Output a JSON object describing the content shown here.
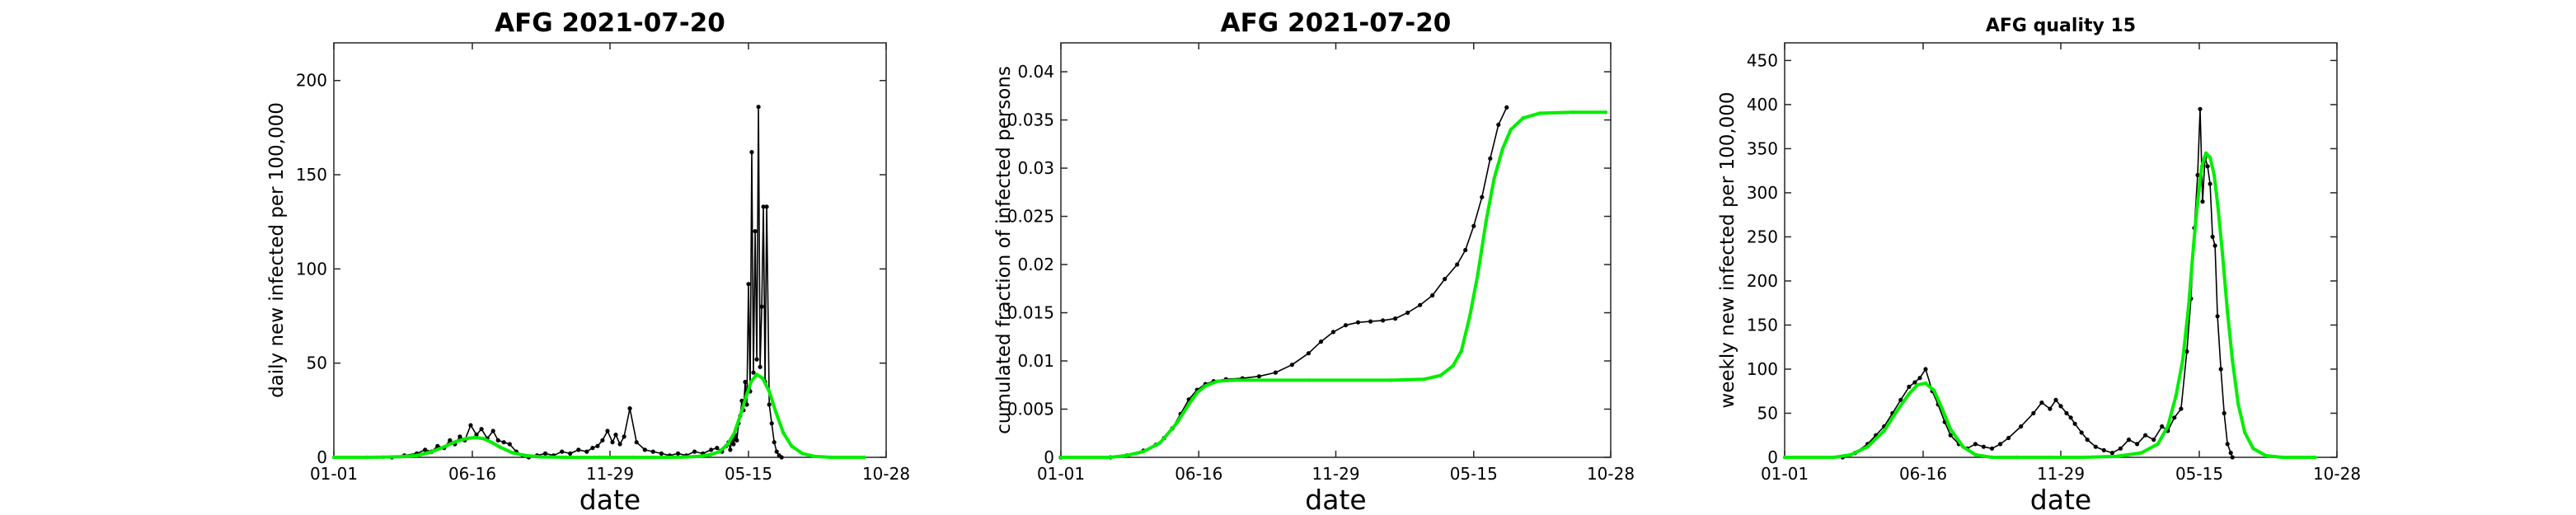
{
  "chart_data": [
    {
      "type": "line",
      "title": "AFG   2021-07-20",
      "xlabel": "date",
      "ylabel": "daily new infected per 100,000",
      "xticks": [
        "01-01",
        "06-16",
        "11-29",
        "05-15",
        "10-28"
      ],
      "xtick_positions": [
        0,
        167,
        333,
        500,
        666
      ],
      "xlim": [
        0,
        666
      ],
      "ylim": [
        0,
        220
      ],
      "yticks": [
        0,
        50,
        100,
        150,
        200
      ],
      "grid": false,
      "series": [
        {
          "role": "observed",
          "color": "#000000",
          "x": [
            70,
            85,
            100,
            110,
            118,
            125,
            133,
            140,
            146,
            152,
            158,
            165,
            172,
            178,
            185,
            192,
            198,
            205,
            212,
            220,
            228,
            235,
            245,
            255,
            265,
            275,
            285,
            295,
            305,
            312,
            318,
            324,
            330,
            336,
            340,
            345,
            350,
            357,
            365,
            375,
            385,
            395,
            405,
            415,
            425,
            435,
            445,
            455,
            462,
            468,
            473,
            476,
            478,
            480,
            482,
            484,
            486,
            488,
            490,
            492,
            494,
            496,
            498,
            500,
            502,
            504,
            506,
            508,
            510,
            512,
            514,
            516,
            518,
            520,
            522,
            525,
            528,
            531,
            534,
            537,
            540
          ],
          "y": [
            0,
            1,
            2,
            4,
            3,
            6,
            5,
            9,
            7,
            11,
            9,
            17,
            12,
            15,
            10,
            14,
            9,
            8,
            7,
            3,
            1,
            0,
            1,
            2,
            1,
            3,
            2,
            4,
            3,
            5,
            6,
            9,
            14,
            8,
            12,
            7,
            11,
            26,
            8,
            4,
            3,
            2,
            1,
            2,
            1,
            3,
            2,
            4,
            5,
            3,
            6,
            8,
            4,
            10,
            7,
            12,
            9,
            18,
            22,
            30,
            25,
            40,
            28,
            92,
            35,
            162,
            45,
            120,
            52,
            186,
            48,
            80,
            133,
            40,
            133,
            28,
            18,
            8,
            3,
            1,
            0
          ]
        },
        {
          "role": "fit",
          "color": "#00ee00",
          "x": [
            0,
            40,
            60,
            80,
            100,
            115,
            130,
            145,
            160,
            170,
            180,
            190,
            200,
            215,
            230,
            250,
            280,
            320,
            360,
            400,
            420,
            440,
            455,
            465,
            475,
            483,
            490,
            497,
            503,
            510,
            517,
            525,
            533,
            542,
            552,
            565,
            580,
            600,
            640
          ],
          "y": [
            0,
            0,
            0.1,
            0.3,
            1,
            2.5,
            5,
            8,
            10,
            10.5,
            10,
            8,
            5.5,
            2.5,
            1,
            0.2,
            0,
            0,
            0,
            0,
            0.1,
            0.5,
            1.5,
            3,
            7,
            13,
            22,
            32,
            40,
            44,
            42,
            35,
            24,
            13,
            6,
            2,
            0.5,
            0,
            0
          ]
        }
      ]
    },
    {
      "type": "line",
      "title": "AFG   2021-07-20",
      "xlabel": "date",
      "ylabel": "cumulated fraction of infected persons",
      "xticks": [
        "01-01",
        "06-16",
        "11-29",
        "05-15",
        "10-28"
      ],
      "xtick_positions": [
        0,
        167,
        333,
        500,
        666
      ],
      "xlim": [
        0,
        666
      ],
      "ylim": [
        0,
        0.043
      ],
      "yticks": [
        0,
        0.005,
        0.01,
        0.015,
        0.02,
        0.025,
        0.03,
        0.035,
        0.04
      ],
      "ytick_labels": [
        "0",
        "0.005",
        "0.01",
        "0.015",
        "0.02",
        "0.025",
        "0.03",
        "0.035",
        "0.04"
      ],
      "grid": false,
      "series": [
        {
          "role": "observed",
          "color": "#000000",
          "x": [
            0,
            60,
            80,
            100,
            115,
            125,
            135,
            145,
            155,
            165,
            175,
            185,
            200,
            220,
            240,
            260,
            280,
            300,
            315,
            330,
            345,
            360,
            375,
            390,
            405,
            420,
            435,
            450,
            465,
            480,
            490,
            500,
            510,
            520,
            530,
            540
          ],
          "y": [
            0,
            0,
            0.0002,
            0.0007,
            0.0013,
            0.002,
            0.003,
            0.0045,
            0.006,
            0.007,
            0.0076,
            0.0079,
            0.0081,
            0.0082,
            0.0084,
            0.0088,
            0.0096,
            0.0108,
            0.012,
            0.013,
            0.0137,
            0.014,
            0.0141,
            0.0142,
            0.0144,
            0.015,
            0.0158,
            0.0168,
            0.0185,
            0.02,
            0.0215,
            0.024,
            0.027,
            0.031,
            0.0345,
            0.0363
          ]
        },
        {
          "role": "fit",
          "color": "#00ee00",
          "x": [
            0,
            60,
            80,
            100,
            120,
            140,
            155,
            165,
            175,
            190,
            210,
            300,
            400,
            440,
            460,
            475,
            485,
            495,
            505,
            515,
            525,
            535,
            545,
            560,
            580,
            620,
            660
          ],
          "y": [
            0,
            0,
            0.0002,
            0.0006,
            0.0015,
            0.0035,
            0.0055,
            0.0067,
            0.0074,
            0.0079,
            0.008,
            0.008,
            0.008,
            0.0081,
            0.0085,
            0.0095,
            0.011,
            0.0145,
            0.019,
            0.0245,
            0.029,
            0.032,
            0.034,
            0.0352,
            0.0357,
            0.0358,
            0.0358
          ]
        }
      ]
    },
    {
      "type": "line",
      "title": "AFG  quality 15",
      "xlabel": "date",
      "ylabel": "weekly new infected per 100,000",
      "xticks": [
        "01-01",
        "06-16",
        "11-29",
        "05-15",
        "10-28"
      ],
      "xtick_positions": [
        0,
        167,
        333,
        500,
        666
      ],
      "xlim": [
        0,
        666
      ],
      "ylim": [
        0,
        470
      ],
      "yticks": [
        0,
        50,
        100,
        150,
        200,
        250,
        300,
        350,
        400,
        450
      ],
      "grid": false,
      "series": [
        {
          "role": "observed",
          "color": "#000000",
          "x": [
            70,
            85,
            100,
            110,
            120,
            130,
            140,
            150,
            157,
            163,
            170,
            178,
            185,
            193,
            200,
            210,
            220,
            230,
            240,
            250,
            260,
            270,
            285,
            300,
            310,
            320,
            327,
            333,
            340,
            345,
            350,
            358,
            365,
            375,
            385,
            395,
            405,
            415,
            425,
            435,
            445,
            455,
            462,
            470,
            478,
            485,
            490,
            494,
            498,
            501,
            504,
            507,
            510,
            513,
            516,
            519,
            522,
            526,
            530,
            534,
            538,
            540
          ],
          "y": [
            0,
            5,
            15,
            25,
            35,
            50,
            65,
            80,
            85,
            90,
            100,
            75,
            60,
            40,
            25,
            15,
            10,
            15,
            12,
            10,
            15,
            22,
            35,
            50,
            62,
            55,
            65,
            58,
            50,
            45,
            38,
            28,
            20,
            12,
            8,
            5,
            10,
            20,
            15,
            25,
            20,
            35,
            30,
            45,
            55,
            120,
            180,
            260,
            320,
            395,
            290,
            340,
            330,
            310,
            250,
            240,
            160,
            100,
            50,
            15,
            5,
            0
          ]
        },
        {
          "role": "fit",
          "color": "#00ee00",
          "x": [
            0,
            60,
            80,
            100,
            120,
            135,
            150,
            160,
            170,
            180,
            190,
            200,
            215,
            230,
            250,
            280,
            320,
            360,
            400,
            430,
            450,
            462,
            472,
            480,
            487,
            493,
            498,
            503,
            508,
            513,
            518,
            523,
            528,
            534,
            540,
            547,
            555,
            565,
            580,
            600,
            640
          ],
          "y": [
            0,
            0,
            3,
            12,
            30,
            52,
            72,
            82,
            84,
            76,
            55,
            32,
            12,
            3,
            0,
            0,
            0,
            0,
            1,
            5,
            15,
            35,
            70,
            110,
            170,
            240,
            290,
            330,
            345,
            340,
            320,
            280,
            230,
            165,
            110,
            60,
            28,
            10,
            2,
            0,
            0
          ]
        }
      ]
    }
  ]
}
